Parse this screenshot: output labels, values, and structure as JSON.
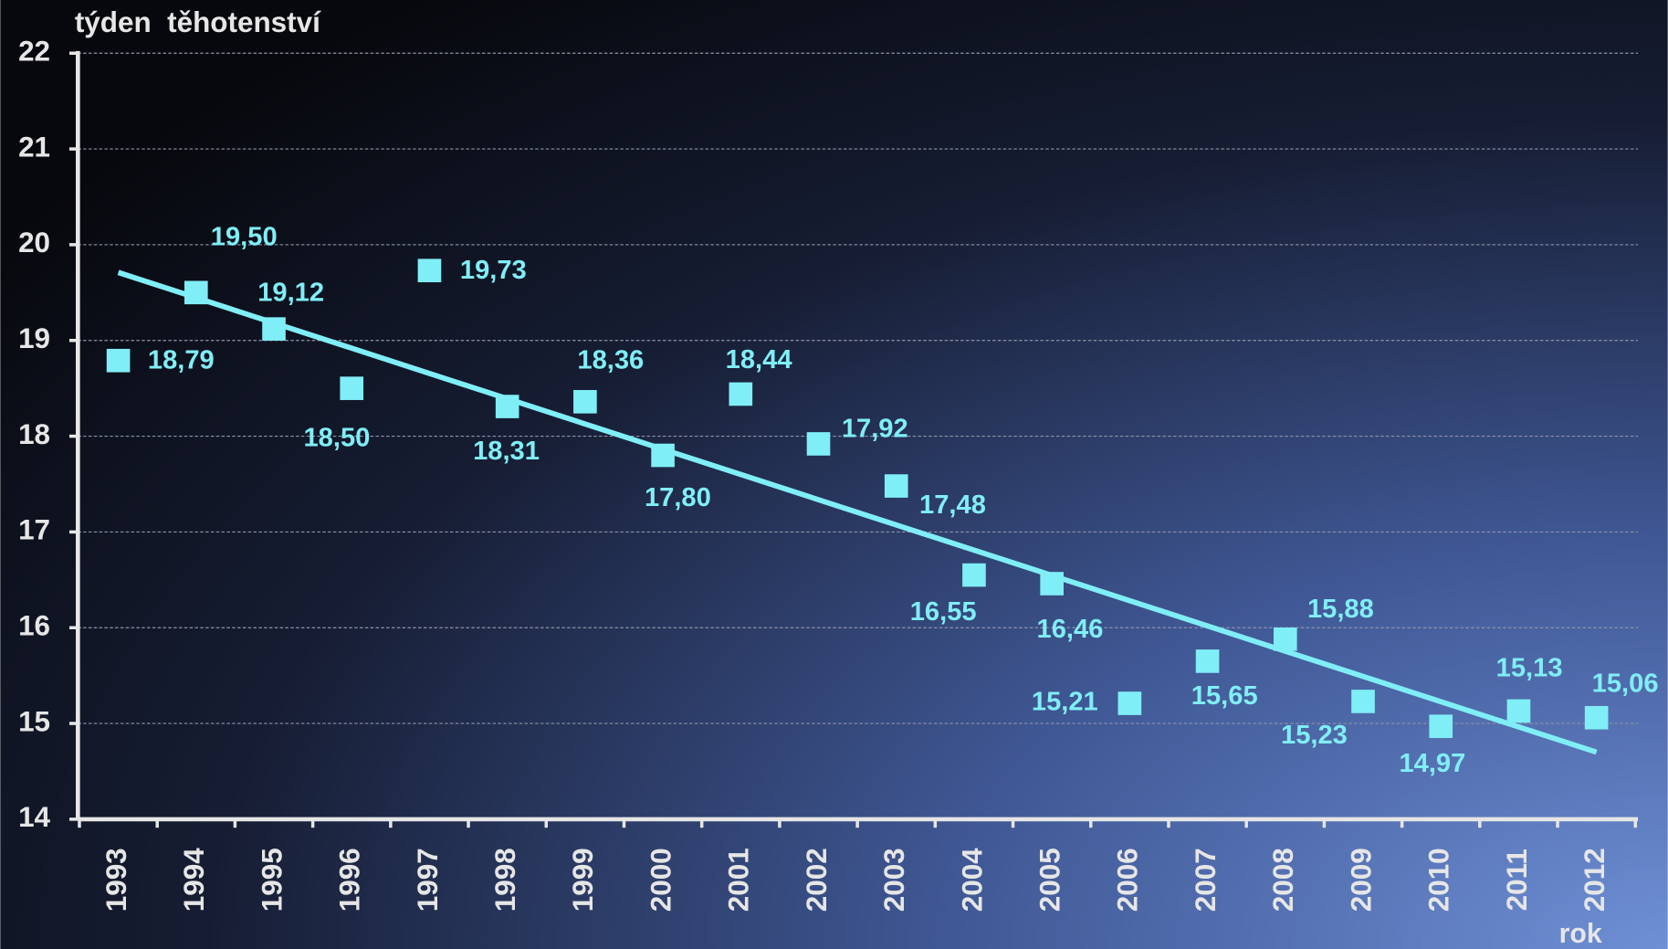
{
  "chart_data": {
    "type": "scatter",
    "y_label": "týden  těhotenství",
    "x_label": "rok",
    "categories": [
      "1993",
      "1994",
      "1995",
      "1996",
      "1997",
      "1998",
      "1999",
      "2000",
      "2001",
      "2002",
      "2003",
      "2004",
      "2005",
      "2006",
      "2007",
      "2008",
      "2009",
      "2010",
      "2011",
      "2012"
    ],
    "values": [
      18.79,
      19.5,
      19.12,
      18.5,
      19.73,
      18.31,
      18.36,
      17.8,
      18.44,
      17.92,
      17.48,
      16.55,
      16.46,
      15.21,
      15.65,
      15.88,
      15.23,
      14.97,
      15.13,
      15.06
    ],
    "value_labels": [
      "18,79",
      "19,50",
      "19,12",
      "18,50",
      "19,73",
      "18,31",
      "18,36",
      "17,80",
      "18,44",
      "17,92",
      "17,48",
      "16,55",
      "16,46",
      "15,21",
      "15,65",
      "15,88",
      "15,23",
      "14,97",
      "15,13",
      "15,06"
    ],
    "color": "#80eef6",
    "trend": {
      "color": "#80eef6",
      "values": [
        19.71,
        14.7
      ]
    },
    "ylim": [
      14,
      22
    ],
    "yticks": [
      14,
      15,
      16,
      17,
      18,
      19,
      20,
      21,
      22
    ],
    "grid": true
  }
}
